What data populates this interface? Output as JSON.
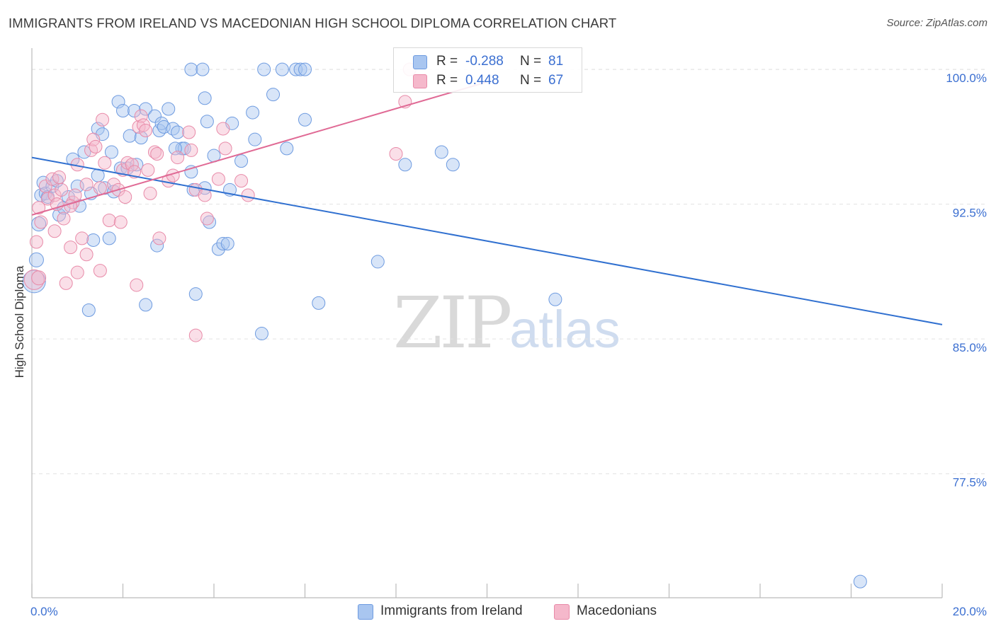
{
  "header": {
    "title": "IMMIGRANTS FROM IRELAND VS MACEDONIAN HIGH SCHOOL DIPLOMA CORRELATION CHART",
    "source": "Source: ZipAtlas.com"
  },
  "watermark": {
    "zip": "ZIP",
    "atlas": "atlas"
  },
  "legend": {
    "rows": [
      {
        "r_label": "R =",
        "r_value": "-0.288",
        "n_label": "N =",
        "n_value": "81",
        "color": "#a9c6f0"
      },
      {
        "r_label": "R =",
        "r_value": "0.448",
        "n_label": "N =",
        "n_value": "67",
        "color": "#f5b8cb"
      }
    ]
  },
  "bottom_legend": {
    "items": [
      {
        "label": "Immigrants from Ireland",
        "color": "#a9c6f0"
      },
      {
        "label": "Macedonians",
        "color": "#f5b8cb"
      }
    ]
  },
  "colors": {
    "blue_fill": "#a9c6f0",
    "blue_line": "#3070d0",
    "pink_fill": "#f5b8cb",
    "pink_line": "#e06a95",
    "axis_label": "#3b6fd1",
    "grid": "#e2e2e2"
  },
  "chart_data": {
    "type": "scatter",
    "xlabel": "",
    "ylabel": "High School Diploma",
    "xlim": [
      0,
      20
    ],
    "ylim": [
      70.6,
      101.5
    ],
    "x_tick_labels": [
      "0.0%",
      "20.0%"
    ],
    "y_ticks": [
      77.5,
      85.0,
      92.5,
      100.0
    ],
    "y_tick_labels": [
      "77.5%",
      "85.0%",
      "92.5%",
      "100.0%"
    ],
    "grid": true,
    "legend_position": "top-center",
    "series": [
      {
        "name": "Immigrants from Ireland",
        "trend": [
          [
            0,
            95.1
          ],
          [
            20,
            85.8
          ]
        ],
        "points": [
          [
            0.1,
            89.4
          ],
          [
            0.2,
            93.0
          ],
          [
            0.25,
            93.7
          ],
          [
            0.3,
            93.1
          ],
          [
            0.35,
            92.9
          ],
          [
            0.45,
            93.5
          ],
          [
            0.55,
            93.8
          ],
          [
            0.6,
            91.9
          ],
          [
            0.7,
            92.3
          ],
          [
            0.8,
            92.9
          ],
          [
            0.9,
            95.0
          ],
          [
            1.0,
            93.5
          ],
          [
            1.05,
            92.4
          ],
          [
            1.15,
            95.4
          ],
          [
            1.3,
            93.1
          ],
          [
            1.35,
            90.5
          ],
          [
            1.45,
            94.1
          ],
          [
            1.45,
            96.7
          ],
          [
            1.55,
            96.4
          ],
          [
            1.6,
            93.4
          ],
          [
            1.7,
            90.6
          ],
          [
            1.75,
            95.4
          ],
          [
            1.8,
            93.2
          ],
          [
            1.95,
            94.5
          ],
          [
            1.9,
            98.2
          ],
          [
            2.0,
            97.7
          ],
          [
            2.1,
            94.5
          ],
          [
            2.15,
            96.3
          ],
          [
            2.25,
            97.7
          ],
          [
            2.3,
            94.7
          ],
          [
            2.4,
            96.2
          ],
          [
            2.5,
            97.8
          ],
          [
            2.5,
            86.9
          ],
          [
            2.7,
            97.4
          ],
          [
            2.75,
            90.2
          ],
          [
            2.8,
            96.6
          ],
          [
            2.85,
            97.0
          ],
          [
            2.9,
            96.8
          ],
          [
            3.0,
            97.8
          ],
          [
            3.1,
            96.7
          ],
          [
            3.2,
            96.5
          ],
          [
            3.3,
            95.6
          ],
          [
            3.35,
            95.6
          ],
          [
            3.5,
            100.0
          ],
          [
            3.6,
            87.5
          ],
          [
            3.75,
            100.0
          ],
          [
            3.15,
            95.6
          ],
          [
            3.5,
            94.3
          ],
          [
            3.55,
            93.3
          ],
          [
            3.8,
            98.4
          ],
          [
            3.8,
            93.4
          ],
          [
            3.85,
            97.1
          ],
          [
            3.9,
            91.5
          ],
          [
            4.0,
            95.2
          ],
          [
            4.1,
            90.0
          ],
          [
            4.2,
            90.3
          ],
          [
            4.3,
            90.3
          ],
          [
            4.35,
            93.3
          ],
          [
            4.4,
            97.0
          ],
          [
            4.6,
            94.9
          ],
          [
            4.85,
            97.6
          ],
          [
            4.9,
            96.1
          ],
          [
            5.05,
            85.3
          ],
          [
            5.1,
            100.0
          ],
          [
            5.3,
            98.6
          ],
          [
            5.5,
            100.0
          ],
          [
            5.6,
            95.6
          ],
          [
            5.8,
            100.0
          ],
          [
            5.9,
            100.0
          ],
          [
            6.0,
            97.2
          ],
          [
            6.0,
            100.0
          ],
          [
            6.3,
            87.0
          ],
          [
            7.6,
            89.3
          ],
          [
            8.2,
            94.7
          ],
          [
            9.0,
            95.4
          ],
          [
            9.25,
            94.7
          ],
          [
            0.05,
            88.2
          ],
          [
            0.15,
            91.4
          ],
          [
            1.25,
            86.6
          ],
          [
            11.5,
            87.2
          ],
          [
            18.2,
            71.5
          ]
        ]
      },
      {
        "name": "Macedonians",
        "trend": [
          [
            0,
            91.9
          ],
          [
            10,
            99.3
          ]
        ],
        "points": [
          [
            0.05,
            88.3
          ],
          [
            0.1,
            90.4
          ],
          [
            0.15,
            92.3
          ],
          [
            0.2,
            91.5
          ],
          [
            0.3,
            93.5
          ],
          [
            0.35,
            92.8
          ],
          [
            0.45,
            93.9
          ],
          [
            0.5,
            93.0
          ],
          [
            0.5,
            91.0
          ],
          [
            0.55,
            92.5
          ],
          [
            0.6,
            94.0
          ],
          [
            0.7,
            91.7
          ],
          [
            0.75,
            88.1
          ],
          [
            0.85,
            90.1
          ],
          [
            0.9,
            92.6
          ],
          [
            0.95,
            93.0
          ],
          [
            1.0,
            94.7
          ],
          [
            1.0,
            88.7
          ],
          [
            1.1,
            90.6
          ],
          [
            1.2,
            93.6
          ],
          [
            1.2,
            89.7
          ],
          [
            1.3,
            95.5
          ],
          [
            1.35,
            96.1
          ],
          [
            1.4,
            95.7
          ],
          [
            1.5,
            88.8
          ],
          [
            1.55,
            97.2
          ],
          [
            1.6,
            94.8
          ],
          [
            1.7,
            91.6
          ],
          [
            1.8,
            93.6
          ],
          [
            1.9,
            93.3
          ],
          [
            1.95,
            91.5
          ],
          [
            2.0,
            94.4
          ],
          [
            2.05,
            92.9
          ],
          [
            2.1,
            94.8
          ],
          [
            2.2,
            94.7
          ],
          [
            2.25,
            94.3
          ],
          [
            2.3,
            88.0
          ],
          [
            2.35,
            96.8
          ],
          [
            2.4,
            97.4
          ],
          [
            2.45,
            96.9
          ],
          [
            2.5,
            96.6
          ],
          [
            2.6,
            93.1
          ],
          [
            2.7,
            95.4
          ],
          [
            2.75,
            95.3
          ],
          [
            2.8,
            90.6
          ],
          [
            3.0,
            93.8
          ],
          [
            3.1,
            94.1
          ],
          [
            3.2,
            95.1
          ],
          [
            3.45,
            96.5
          ],
          [
            3.5,
            95.5
          ],
          [
            3.6,
            93.3
          ],
          [
            3.6,
            85.2
          ],
          [
            3.8,
            93.0
          ],
          [
            3.85,
            91.7
          ],
          [
            4.1,
            93.9
          ],
          [
            4.2,
            96.7
          ],
          [
            4.25,
            95.6
          ],
          [
            4.6,
            93.8
          ],
          [
            4.75,
            93.0
          ],
          [
            8.0,
            95.3
          ],
          [
            8.2,
            98.2
          ],
          [
            8.3,
            100.0
          ],
          [
            0.15,
            88.4
          ],
          [
            0.65,
            93.3
          ],
          [
            0.85,
            92.4
          ],
          [
            1.5,
            93.4
          ],
          [
            2.55,
            94.4
          ]
        ]
      }
    ]
  }
}
